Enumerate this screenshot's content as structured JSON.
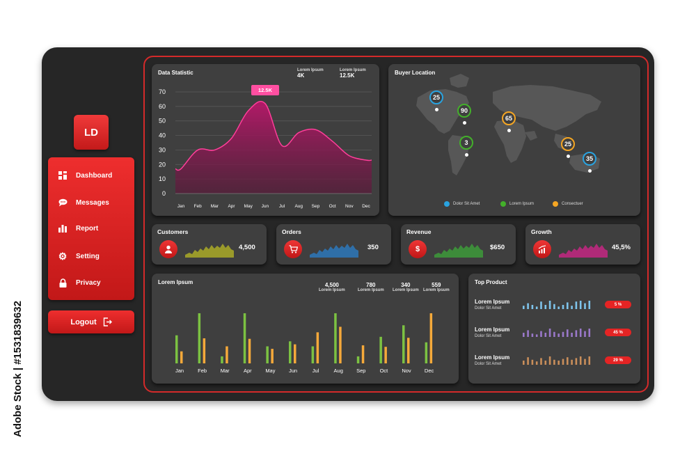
{
  "logo": {
    "initials": "LD"
  },
  "sidebar": {
    "items": [
      {
        "label": "Dashboard",
        "icon": "dashboard-icon"
      },
      {
        "label": "Messages",
        "icon": "chat-icon"
      },
      {
        "label": "Report",
        "icon": "bar-chart-icon"
      },
      {
        "label": "Setting",
        "icon": "gear-icon"
      },
      {
        "label": "Privacy",
        "icon": "lock-icon"
      }
    ],
    "logout_label": "Logout"
  },
  "data_statistic": {
    "title": "Data Statistic",
    "stats": [
      {
        "label": "Lorem Ipsum",
        "value": "4K"
      },
      {
        "label": "Lorem Ipsum",
        "value": "12.5K"
      }
    ],
    "tooltip": "12.5K",
    "chart_data": {
      "type": "area",
      "x": [
        "Jan",
        "Feb",
        "Mar",
        "Apr",
        "May",
        "Jun",
        "Jul",
        "Aug",
        "Sep",
        "Oct",
        "Nov",
        "Dec"
      ],
      "values": [
        17,
        30,
        30,
        38,
        57,
        62,
        33,
        42,
        44,
        36,
        26,
        23
      ],
      "y_ticks": [
        "0",
        "10",
        "20",
        "30",
        "40",
        "50",
        "60",
        "70"
      ],
      "ylim": [
        0,
        70
      ],
      "grid": true,
      "color": "#c2185b"
    }
  },
  "buyer_location": {
    "title": "Buyer Location",
    "pins": [
      {
        "value": "25",
        "color": "#29a3e0"
      },
      {
        "value": "90",
        "color": "#43b02a"
      },
      {
        "value": "65",
        "color": "#f5a623"
      },
      {
        "value": "3",
        "color": "#43b02a"
      },
      {
        "value": "25",
        "color": "#f5a623"
      },
      {
        "value": "35",
        "color": "#29a3e0"
      }
    ],
    "legend": [
      {
        "label": "Dolor Sit Amet",
        "color": "#29a3e0"
      },
      {
        "label": "Lorem Ipsum",
        "color": "#43b02a"
      },
      {
        "label": "Consectuer",
        "color": "#f5a623"
      }
    ]
  },
  "kpis": [
    {
      "title": "Customers",
      "value": "4,500",
      "icon": "user-icon",
      "spark_color": "#9a9a2a"
    },
    {
      "title": "Orders",
      "value": "350",
      "icon": "cart-icon",
      "spark_color": "#2f6fa8"
    },
    {
      "title": "Revenue",
      "value": "$650",
      "icon": "dollar-icon",
      "spark_color": "#3d8c3a"
    },
    {
      "title": "Growth",
      "value": "45,5%",
      "icon": "growth-icon",
      "spark_color": "#b02a78"
    }
  ],
  "bar_panel": {
    "title": "Lorem Ipsum",
    "stats": [
      {
        "value": "4,500",
        "label": "Lorem Ipsum"
      },
      {
        "value": "780",
        "label": "Lorem Ipsum"
      },
      {
        "value": "340",
        "label": "Lorem Ipsum"
      },
      {
        "value": "559",
        "label": "Lorem Ipsum"
      }
    ],
    "chart_data": {
      "type": "bar",
      "categories": [
        "Jan",
        "Feb",
        "Mar",
        "Apr",
        "May",
        "Jun",
        "Jul",
        "Aug",
        "Sep",
        "Oct",
        "Nov",
        "Dec"
      ],
      "series": [
        {
          "values": [
            56,
            100,
            14,
            100,
            34,
            44,
            34,
            100,
            14,
            53,
            76,
            42
          ],
          "color": "#7cc242"
        },
        {
          "values": [
            24,
            50,
            34,
            49,
            29,
            38,
            62,
            73,
            36,
            33,
            51,
            100
          ],
          "color": "#f5a93a"
        }
      ],
      "ylim": [
        0,
        100
      ]
    }
  },
  "top_product": {
    "title": "Top Product",
    "items": [
      {
        "name": "Lorem Ipsum",
        "sub": "Dolor Sit Amet",
        "badge": "5 %",
        "color": "#7ec3ea",
        "bars": [
          0.4,
          0.7,
          0.5,
          0.3,
          0.9,
          0.5,
          1,
          0.6,
          0.3,
          0.5,
          0.8,
          0.4,
          0.9,
          1,
          0.7,
          1
        ]
      },
      {
        "name": "Lorem Ipsum",
        "sub": "Dolor Sit Amet",
        "badge": "45 %",
        "color": "#9a78c9",
        "bars": [
          0.5,
          0.8,
          0.4,
          0.3,
          0.7,
          0.5,
          1,
          0.6,
          0.4,
          0.6,
          0.9,
          0.5,
          0.8,
          1,
          0.7,
          1
        ]
      },
      {
        "name": "Lorem Ipsum",
        "sub": "Dolor Sit Amet",
        "badge": "29 %",
        "color": "#c98e5a",
        "bars": [
          0.5,
          0.9,
          0.6,
          0.4,
          0.8,
          0.5,
          1,
          0.6,
          0.5,
          0.7,
          0.9,
          0.6,
          0.8,
          1,
          0.7,
          1
        ]
      }
    ]
  },
  "watermark": {
    "text": "Adobe Stock | #1531839632"
  }
}
